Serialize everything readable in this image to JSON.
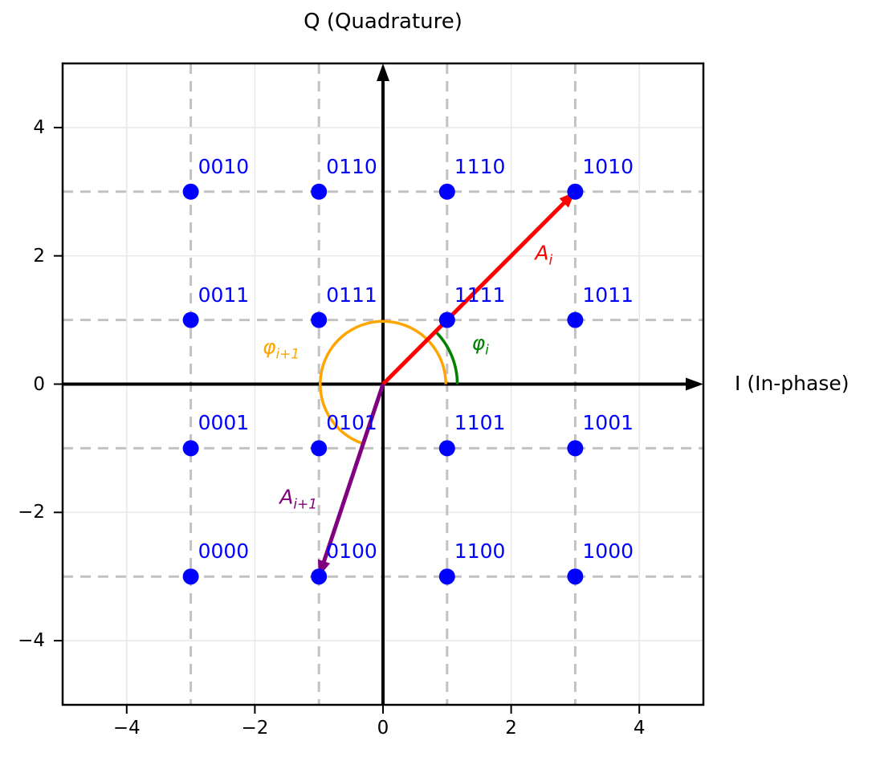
{
  "chart_data": {
    "type": "scatter",
    "title": "Q (Quadrature)",
    "xlabel": "I (In-phase)",
    "description": "16-QAM constellation diagram with Gray-coded symbol labels and amplitude/phase annotations",
    "xlim": [
      -5,
      5
    ],
    "ylim": [
      -5,
      5
    ],
    "xticks": {
      "values": [
        -4,
        -2,
        0,
        2,
        4
      ],
      "labels": [
        "−4",
        "−2",
        "0",
        "2",
        "4"
      ]
    },
    "yticks": {
      "values": [
        -4,
        -2,
        0,
        2,
        4
      ],
      "labels": [
        "−4",
        "−2",
        "0",
        "2",
        "4"
      ]
    },
    "grid": {
      "solid_lines": [
        -4,
        -2,
        2,
        4
      ],
      "dashed_lines": [
        -3,
        -1,
        1,
        3
      ],
      "solid_color": "#e8e8e8",
      "dashed_color": "#c2c2c2"
    },
    "points": [
      {
        "label": "0010",
        "i": -3,
        "q": 3
      },
      {
        "label": "0110",
        "i": -1,
        "q": 3
      },
      {
        "label": "1110",
        "i": 1,
        "q": 3
      },
      {
        "label": "1010",
        "i": 3,
        "q": 3
      },
      {
        "label": "0011",
        "i": -3,
        "q": 1
      },
      {
        "label": "0111",
        "i": -1,
        "q": 1
      },
      {
        "label": "1111",
        "i": 1,
        "q": 1
      },
      {
        "label": "1011",
        "i": 3,
        "q": 1
      },
      {
        "label": "0001",
        "i": -3,
        "q": -1
      },
      {
        "label": "0101",
        "i": -1,
        "q": -1
      },
      {
        "label": "1101",
        "i": 1,
        "q": -1
      },
      {
        "label": "1001",
        "i": 3,
        "q": -1
      },
      {
        "label": "0000",
        "i": -3,
        "q": -3
      },
      {
        "label": "0100",
        "i": -1,
        "q": -3
      },
      {
        "label": "1100",
        "i": 1,
        "q": -3
      },
      {
        "label": "1000",
        "i": 3,
        "q": -3
      }
    ],
    "point_style": {
      "color": "#0000ff",
      "radius_px": 10
    },
    "vectors": [
      {
        "name": "amplitude-vector-i",
        "from": [
          0,
          0
        ],
        "to": [
          3,
          3
        ],
        "color": "#ff0000",
        "label": {
          "base": "A",
          "sub": "i"
        },
        "label_pos": [
          2.51,
          1.98
        ]
      },
      {
        "name": "amplitude-vector-i-plus-1",
        "from": [
          0,
          0
        ],
        "to": [
          -1,
          -3
        ],
        "color": "#800080",
        "label": {
          "base": "A",
          "sub": "i+1"
        },
        "label_pos": [
          -1.32,
          -1.82
        ]
      }
    ],
    "arcs": [
      {
        "name": "phase-arc-i",
        "radius": 1.16,
        "start_deg": 0,
        "end_deg": 45,
        "color": "#008000",
        "label": {
          "base": "φ",
          "sub": "i"
        },
        "label_pos": [
          1.52,
          0.58
        ]
      },
      {
        "name": "phase-arc-i-plus-1",
        "radius": 0.98,
        "start_deg": 0,
        "end_deg": 251.6,
        "color": "#ffa500",
        "label": {
          "base": "φ",
          "sub": "i+1"
        },
        "label_pos": [
          -1.59,
          0.52
        ]
      }
    ],
    "axes": {
      "color": "#000000",
      "x_arrow": [
        [
          -5,
          0
        ],
        [
          5,
          0
        ]
      ],
      "y_arrow": [
        [
          0,
          -5
        ],
        [
          0,
          5
        ]
      ]
    }
  }
}
